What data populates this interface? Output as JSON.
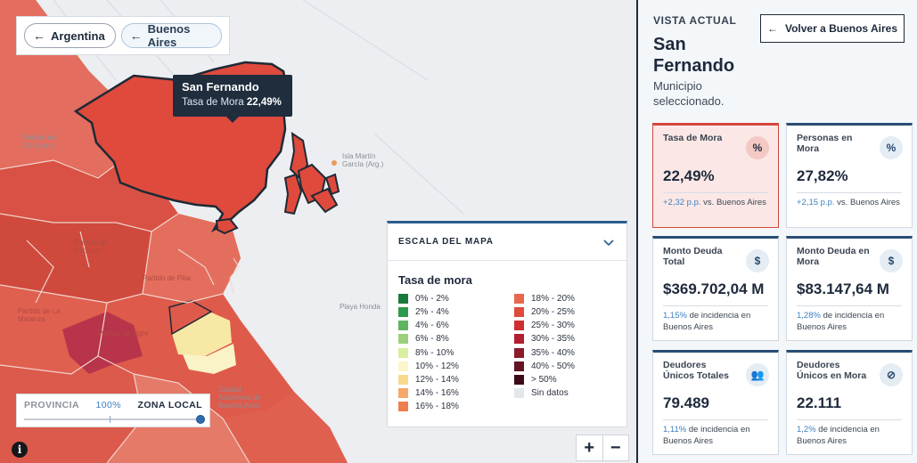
{
  "nav": {
    "back_country": "Argentina",
    "back_province": "Buenos Aires"
  },
  "tooltip": {
    "name": "San Fernando",
    "metric_label": "Tasa de Mora",
    "metric_value": "22,49%"
  },
  "map_labels": {
    "campana": "Partido de Campana",
    "escobar": "Partido de Escobar",
    "pilar": "Partido de Pilar",
    "isla": "Isla Martín García (Arg.)",
    "playa": "Playa Honda",
    "tigre": "Partido de Tigre",
    "matanza": "Partido de La Matanza",
    "caba": "Ciudad Autónoma de Buenos Aires"
  },
  "slider": {
    "left_label": "PROVINCIA",
    "value": "100%",
    "right_label": "ZONA LOCAL",
    "level": 1.0
  },
  "legend": {
    "title": "ESCALA DEL MAPA",
    "subtitle": "Tasa de mora",
    "col1": [
      {
        "label": "0% - 2%",
        "color": "#1a7a3c"
      },
      {
        "label": "2% - 4%",
        "color": "#2e9a4b"
      },
      {
        "label": "4% - 6%",
        "color": "#5db562"
      },
      {
        "label": "6% - 8%",
        "color": "#9bd17a"
      },
      {
        "label": "8% - 10%",
        "color": "#d8ef9f"
      },
      {
        "label": "10% - 12%",
        "color": "#fbf6c9"
      },
      {
        "label": "12% - 14%",
        "color": "#f8da8d"
      },
      {
        "label": "14% - 16%",
        "color": "#f5a86a"
      },
      {
        "label": "16% - 18%",
        "color": "#ee7e52"
      }
    ],
    "col2": [
      {
        "label": "18% - 20%",
        "color": "#e8674a"
      },
      {
        "label": "20% - 25%",
        "color": "#df4a3d"
      },
      {
        "label": "25% - 30%",
        "color": "#cf2f31"
      },
      {
        "label": "30% - 35%",
        "color": "#b21f30"
      },
      {
        "label": "35% - 40%",
        "color": "#8c1a2b"
      },
      {
        "label": "40% - 50%",
        "color": "#641324"
      },
      {
        "label": "> 50%",
        "color": "#3d0b17"
      },
      {
        "label": "Sin datos",
        "color": "#e3e7ec"
      }
    ]
  },
  "zoom": {
    "plus": "+",
    "minus": "−"
  },
  "panel": {
    "kicker": "VISTA ACTUAL",
    "title": "San Fernando",
    "subtitle": "Municipio seleccionado.",
    "back_button": "Volver a Buenos Aires"
  },
  "cards": [
    {
      "title": "Tasa de Mora",
      "icon": "percent-icon",
      "glyph": "%",
      "value": "22,49%",
      "note_hl": "+2,32 p.p.",
      "note": " vs. Buenos Aires",
      "active": true
    },
    {
      "title": "Personas en Mora",
      "icon": "percent-badge-icon",
      "glyph": "%",
      "value": "27,82%",
      "note_hl": "+2,15 p.p.",
      "note": " vs. Buenos Aires",
      "active": false
    },
    {
      "title": "Monto Deuda Total",
      "icon": "money-icon",
      "glyph": "$",
      "value": "$369.702,04 M",
      "note_hl": "1,15%",
      "note": " de incidencia en Buenos Aires",
      "active": false
    },
    {
      "title": "Monto Deuda en Mora",
      "icon": "money-off-icon",
      "glyph": "$",
      "value": "$83.147,64 M",
      "note_hl": "1,28%",
      "note": " de incidencia en Buenos Aires",
      "active": false
    },
    {
      "title": "Deudores Únicos Totales",
      "icon": "users-icon",
      "glyph": "👥",
      "value": "79.489",
      "note_hl": "1,11%",
      "note": " de incidencia en Buenos Aires",
      "active": false
    },
    {
      "title": "Deudores Únicos en Mora",
      "icon": "user-off-icon",
      "glyph": "⊘",
      "value": "22.111",
      "note_hl": "1,2%",
      "note": " de incidencia en Buenos Aires",
      "active": false
    }
  ]
}
